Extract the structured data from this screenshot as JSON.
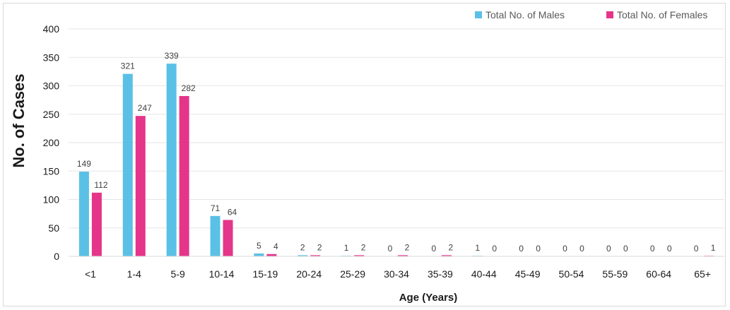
{
  "chart_data": {
    "type": "bar",
    "categories": [
      "<1",
      "1-4",
      "5-9",
      "10-14",
      "15-19",
      "20-24",
      "25-29",
      "30-34",
      "35-39",
      "40-44",
      "45-49",
      "50-54",
      "55-59",
      "60-64",
      "65+"
    ],
    "series": [
      {
        "name": "Total No. of Males",
        "color": "#5bc0e6",
        "values": [
          149,
          321,
          339,
          71,
          5,
          2,
          1,
          0,
          0,
          1,
          0,
          0,
          0,
          0,
          0
        ]
      },
      {
        "name": "Total No. of Females",
        "color": "#e5358a",
        "values": [
          112,
          247,
          282,
          64,
          4,
          2,
          2,
          2,
          2,
          0,
          0,
          0,
          0,
          0,
          1
        ]
      }
    ],
    "xlabel": "Age (Years)",
    "ylabel": "No. of Cases",
    "ylim": [
      0,
      400
    ],
    "yticks": [
      0,
      50,
      100,
      150,
      200,
      250,
      300,
      350,
      400
    ],
    "grid": true,
    "legend_position": "top-right"
  }
}
